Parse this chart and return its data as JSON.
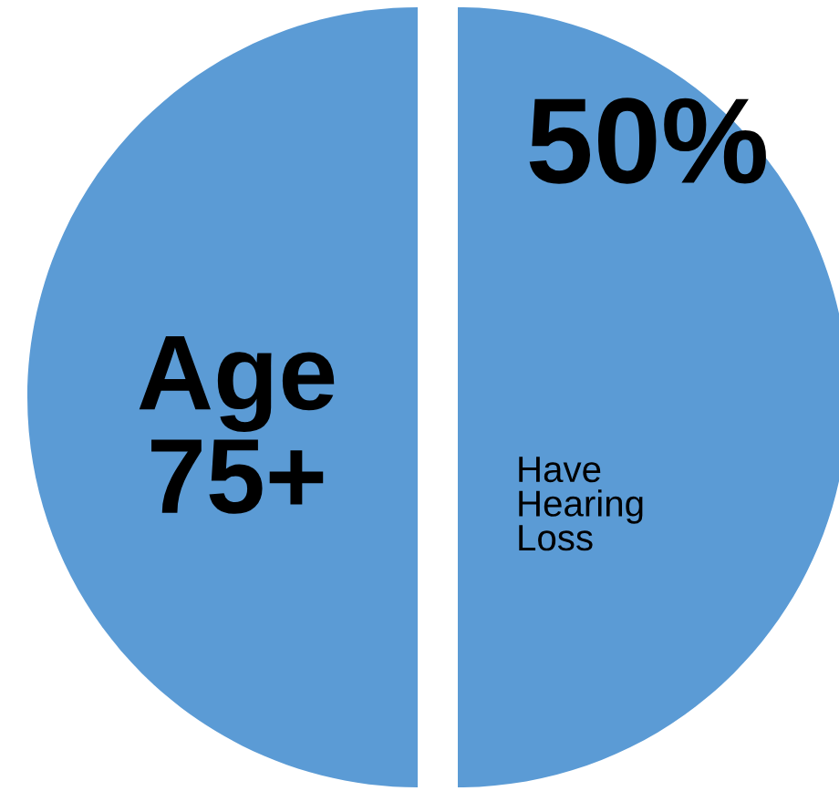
{
  "chart_data": {
    "type": "pie",
    "categories": [
      "Have\nHearing\nLoss",
      "Age\n75+"
    ],
    "values": [
      50,
      50
    ],
    "colors": [
      "#5b9bd5",
      "#5b9bd5"
    ],
    "value_labels": [
      "50%",
      null
    ]
  }
}
